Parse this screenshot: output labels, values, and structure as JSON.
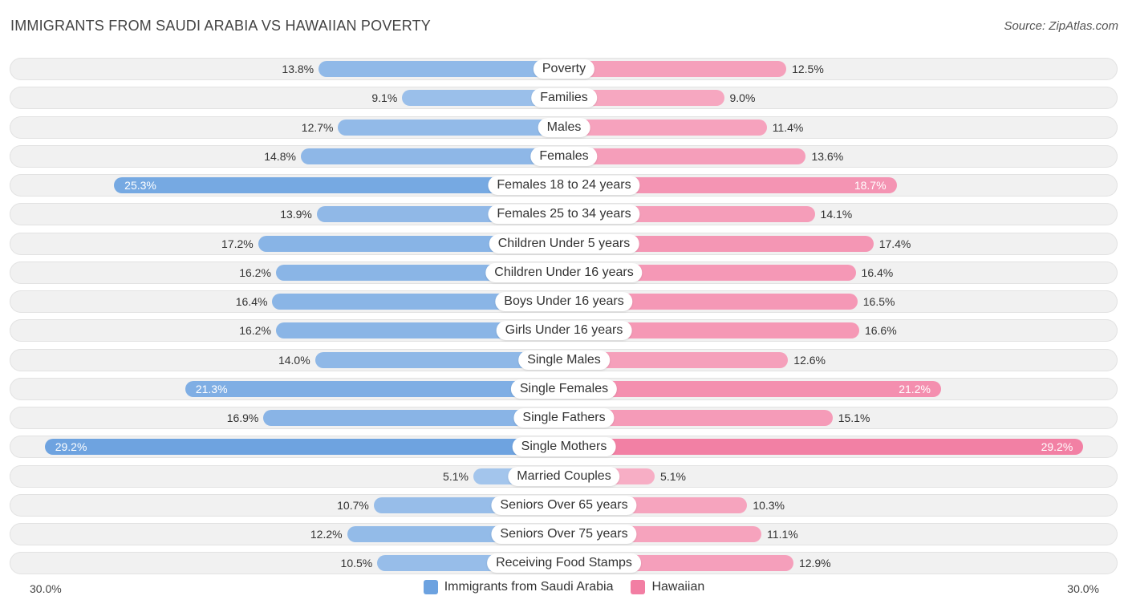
{
  "title": "IMMIGRANTS FROM SAUDI ARABIA VS HAWAIIAN POVERTY",
  "source": "Source: ZipAtlas.com",
  "colors": {
    "left": "#6ca2e0",
    "right": "#f27ea3"
  },
  "chart_data": {
    "type": "bar",
    "orientation": "horizontal-diverging",
    "title": "IMMIGRANTS FROM SAUDI ARABIA VS HAWAIIAN POVERTY",
    "axis_min_label": "30.0%",
    "axis_max_label": "30.0%",
    "xlim": [
      0,
      30
    ],
    "categories": [
      "Poverty",
      "Families",
      "Males",
      "Females",
      "Females 18 to 24 years",
      "Females 25 to 34 years",
      "Children Under 5 years",
      "Children Under 16 years",
      "Boys Under 16 years",
      "Girls Under 16 years",
      "Single Males",
      "Single Females",
      "Single Fathers",
      "Single Mothers",
      "Married Couples",
      "Seniors Over 65 years",
      "Seniors Over 75 years",
      "Receiving Food Stamps"
    ],
    "series": [
      {
        "name": "Immigrants from Saudi Arabia",
        "values": [
          13.8,
          9.1,
          12.7,
          14.8,
          25.3,
          13.9,
          17.2,
          16.2,
          16.4,
          16.2,
          14.0,
          21.3,
          16.9,
          29.2,
          5.1,
          10.7,
          12.2,
          10.5
        ],
        "labels": [
          "13.8%",
          "9.1%",
          "12.7%",
          "14.8%",
          "25.3%",
          "13.9%",
          "17.2%",
          "16.2%",
          "16.4%",
          "16.2%",
          "14.0%",
          "21.3%",
          "16.9%",
          "29.2%",
          "5.1%",
          "10.7%",
          "12.2%",
          "10.5%"
        ]
      },
      {
        "name": "Hawaiian",
        "values": [
          12.5,
          9.0,
          11.4,
          13.6,
          18.7,
          14.1,
          17.4,
          16.4,
          16.5,
          16.6,
          12.6,
          21.2,
          15.1,
          29.2,
          5.1,
          10.3,
          11.1,
          12.9
        ],
        "labels": [
          "12.5%",
          "9.0%",
          "11.4%",
          "13.6%",
          "18.7%",
          "14.1%",
          "17.4%",
          "16.4%",
          "16.5%",
          "16.6%",
          "12.6%",
          "21.2%",
          "15.1%",
          "29.2%",
          "5.1%",
          "10.3%",
          "11.1%",
          "12.9%"
        ]
      }
    ],
    "legend": [
      "Immigrants from Saudi Arabia",
      "Hawaiian"
    ],
    "legend_position": "bottom-center"
  }
}
